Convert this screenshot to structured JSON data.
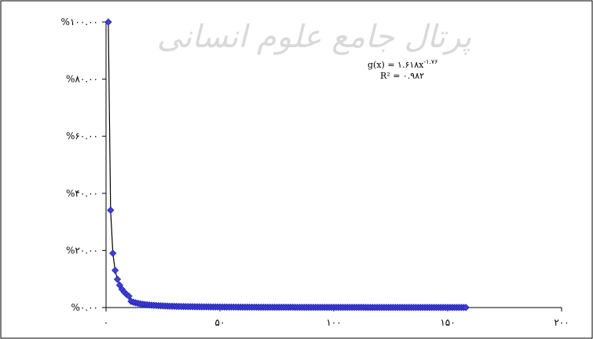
{
  "chart_data": {
    "type": "scatter",
    "title": "",
    "xlabel": "",
    "ylabel": "",
    "xlim": [
      0,
      200
    ],
    "ylim": [
      0,
      100
    ],
    "grid": false,
    "legend": "none",
    "marker_color": "#3f3fd6",
    "line_color": "#000000",
    "x_ticks": [
      {
        "value": 0,
        "label": "۰"
      },
      {
        "value": 50,
        "label": "۵۰"
      },
      {
        "value": 100,
        "label": "۱۰۰"
      },
      {
        "value": 150,
        "label": "۱۵۰"
      },
      {
        "value": 200,
        "label": "۲۰۰"
      }
    ],
    "y_ticks": [
      {
        "value": 0,
        "label": "%۰.۰۰"
      },
      {
        "value": 20,
        "label": "%۲۰.۰۰"
      },
      {
        "value": 40,
        "label": "%۴۰.۰۰"
      },
      {
        "value": 60,
        "label": "%۶۰.۰۰"
      },
      {
        "value": 80,
        "label": "%۸۰.۰۰"
      },
      {
        "value": 100,
        "label": "%۱۰۰.۰۰"
      }
    ],
    "annotation": {
      "equation": "g(x) = ۱.۶۱۸x",
      "exponent": "-۱.۷۶",
      "r_squared": "R² = ۰.۹۸۲"
    },
    "watermark": "پرتال جامع علوم انسانی",
    "series": [
      {
        "x_start": 1,
        "x_end": 158,
        "points_sample": [
          {
            "x": 1,
            "y": 100.0
          },
          {
            "x": 2,
            "y": 34.1
          },
          {
            "x": 3,
            "y": 19.0
          },
          {
            "x": 4,
            "y": 13.0
          },
          {
            "x": 5,
            "y": 9.9
          },
          {
            "x": 6,
            "y": 7.8
          },
          {
            "x": 7,
            "y": 6.4
          },
          {
            "x": 8,
            "y": 5.4
          },
          {
            "x": 9,
            "y": 4.6
          },
          {
            "x": 10,
            "y": 4.0
          }
        ]
      }
    ]
  }
}
